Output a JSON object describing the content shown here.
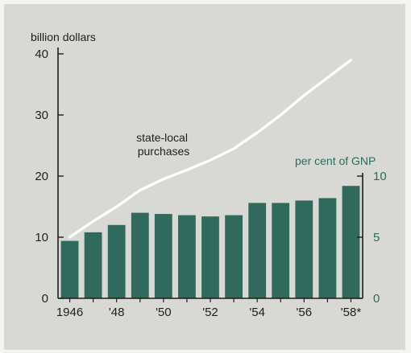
{
  "chart_data": {
    "type": "bar+line",
    "left_axis": {
      "label": "billion dollars",
      "ticks": [
        0,
        10,
        20,
        30,
        40
      ],
      "range": [
        0,
        40
      ]
    },
    "right_axis": {
      "label": "per cent of GNP",
      "ticks": [
        0,
        5,
        10
      ],
      "range": [
        0,
        10
      ]
    },
    "x": [
      "1946",
      "1947",
      "1948",
      "1949",
      "1950",
      "1951",
      "1952",
      "1953",
      "1954",
      "1955",
      "1956",
      "1957",
      "1958"
    ],
    "x_tick_labels": [
      "1946",
      "",
      "'48",
      "",
      "'50",
      "",
      "'52",
      "",
      "'54",
      "",
      "'56",
      "",
      "'58*"
    ],
    "series": [
      {
        "name": "per cent of GNP",
        "kind": "bar",
        "axis": "right",
        "color": "#2f6a5c",
        "values": [
          4.7,
          5.4,
          6.0,
          7.0,
          6.9,
          6.8,
          6.7,
          6.8,
          7.8,
          7.8,
          8.0,
          8.2,
          9.2
        ]
      },
      {
        "name": "state-local purchases",
        "kind": "line",
        "axis": "left",
        "color": "#ffffff",
        "values": [
          10.0,
          12.6,
          15.0,
          17.7,
          19.5,
          21.0,
          22.6,
          24.5,
          27.1,
          30.0,
          33.2,
          36.1,
          39.0
        ]
      }
    ],
    "annotations": [
      {
        "text_lines": [
          "state-local",
          "purchases"
        ],
        "series": "state-local purchases"
      }
    ],
    "grid": false
  }
}
